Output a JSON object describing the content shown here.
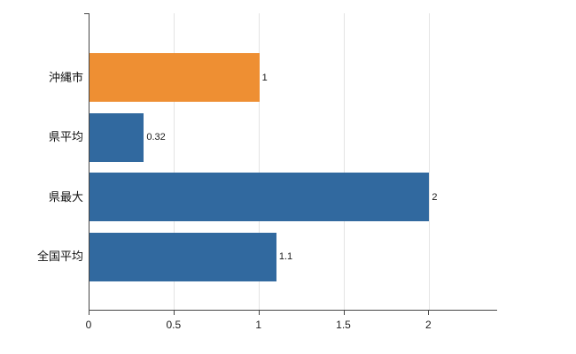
{
  "chart_data": {
    "type": "bar",
    "orientation": "horizontal",
    "title": "",
    "xlabel": "",
    "ylabel": "",
    "categories": [
      "沖縄市",
      "県平均",
      "県最大",
      "全国平均"
    ],
    "values": [
      1,
      0.32,
      2,
      1.1
    ],
    "value_labels": [
      "1",
      "0.32",
      "2",
      "1.1"
    ],
    "bar_colors": [
      "#ee8f33",
      "#31699f",
      "#31699f",
      "#31699f"
    ],
    "xlim": [
      0,
      2.4
    ],
    "x_ticks": [
      0,
      0.5,
      1,
      1.5,
      2
    ],
    "x_tick_labels": [
      "0",
      "0.5",
      "1",
      "1.5",
      "2"
    ],
    "grid": "vertical",
    "legend": "none"
  },
  "colors": {
    "highlight_bar": "#ee8f33",
    "default_bar": "#31699f",
    "grid": "#e4e4e4",
    "axis": "#454545",
    "text": "#1a1a1a",
    "background": "#ffffff"
  }
}
